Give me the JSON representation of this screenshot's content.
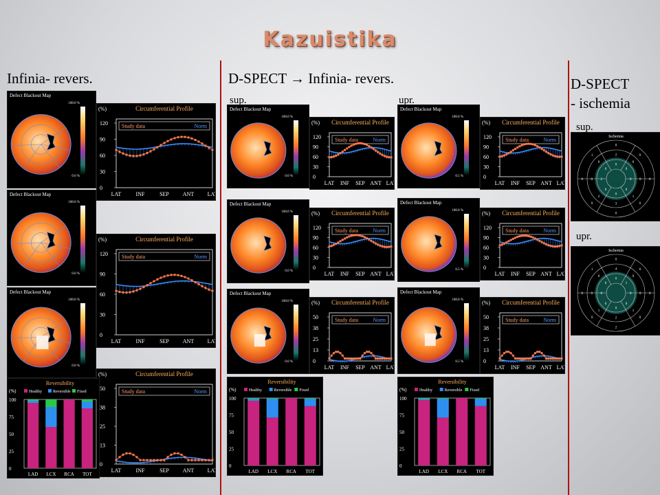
{
  "slide": {
    "title": "Kazuistika"
  },
  "columns": {
    "left": {
      "header": "Infinia- revers."
    },
    "middle": {
      "header": "D-SPECT → Infinia- revers.",
      "sub_left": "sup.",
      "sub_right": "upr."
    },
    "right": {
      "header_line1": "D-SPECT",
      "header_line2": "- ischemia",
      "sub_top": "sup.",
      "sub_bottom": "upr."
    }
  },
  "labels": {
    "defect_map": "Defect Blackout Map",
    "circ_profile": "Circumferential Profile",
    "study_data": "Study data",
    "norm": "Norm",
    "percent": "(%)",
    "scale_top": "100.0 %",
    "scale_bottom": "0.0 %",
    "scale_bottom_alt": "0.5 %",
    "reversibility": "Reversibility",
    "healthy": "Healthy",
    "reversible": "Reversible",
    "fixed": "Fixed",
    "ischemia": "Ischemia"
  },
  "axes": {
    "profile_x": [
      "LAT",
      "INF",
      "SEP",
      "ANT",
      "LAT"
    ],
    "profile_y_120": [
      "120",
      "90",
      "60",
      "30",
      "0"
    ],
    "profile_y_50": [
      "50",
      "38",
      "25",
      "13",
      "0"
    ],
    "bar_y": [
      "100",
      "75",
      "50",
      "25",
      "0"
    ]
  },
  "colors": {
    "healthy": "#c8237e",
    "reversible": "#2f8ff0",
    "fixed": "#28c84a",
    "study": "#ff7a4a",
    "norm": "#3c8cff",
    "accent_line": "#b01010"
  },
  "chart_data": [
    {
      "type": "bar",
      "title": "Reversibility",
      "ylabel": "(%)",
      "ylim": [
        0,
        100
      ],
      "categories": [
        "LAD",
        "LCX",
        "RCA",
        "TOT"
      ],
      "series": [
        {
          "name": "Healthy",
          "values": [
            95,
            60,
            100,
            87
          ]
        },
        {
          "name": "Reversible",
          "values": [
            3,
            29,
            0,
            10
          ]
        },
        {
          "name": "Fixed",
          "values": [
            2,
            11,
            0,
            3
          ]
        }
      ]
    },
    {
      "type": "bar",
      "title": "Reversibility",
      "ylabel": "(%)",
      "ylim": [
        0,
        100
      ],
      "categories": [
        "LAD",
        "LCX",
        "RCA",
        "TOT"
      ],
      "series": [
        {
          "name": "Healthy",
          "values": [
            96,
            71,
            100,
            88
          ]
        },
        {
          "name": "Reversible",
          "values": [
            3,
            28,
            0,
            11
          ]
        },
        {
          "name": "Fixed",
          "values": [
            1,
            1,
            0,
            1
          ]
        }
      ]
    },
    {
      "type": "bar",
      "title": "Reversibility",
      "ylabel": "(%)",
      "ylim": [
        0,
        100
      ],
      "categories": [
        "LAD",
        "LCX",
        "RCA",
        "TOT"
      ],
      "series": [
        {
          "name": "Healthy",
          "values": [
            97,
            71,
            100,
            88
          ]
        },
        {
          "name": "Reversible",
          "values": [
            2,
            28,
            0,
            11
          ]
        },
        {
          "name": "Fixed",
          "values": [
            1,
            1,
            0,
            1
          ]
        }
      ]
    }
  ],
  "ischemia_maps": [
    {
      "ring_values": [
        "0",
        "0",
        "0",
        "0",
        "0",
        "0",
        "0",
        "1",
        "2",
        "0",
        "0",
        "1",
        "3",
        "2",
        "0",
        "0",
        "0",
        "0",
        "0",
        "0",
        "0",
        "0",
        "2",
        "0"
      ]
    },
    {
      "ring_values": [
        "0",
        "0",
        "0",
        "0",
        "2",
        "0",
        "0",
        "1",
        "4",
        "0",
        "0",
        "1",
        "2",
        "1",
        "0",
        "0",
        "0",
        "1",
        "0",
        "0",
        "0",
        "0",
        "0",
        "0"
      ]
    }
  ]
}
